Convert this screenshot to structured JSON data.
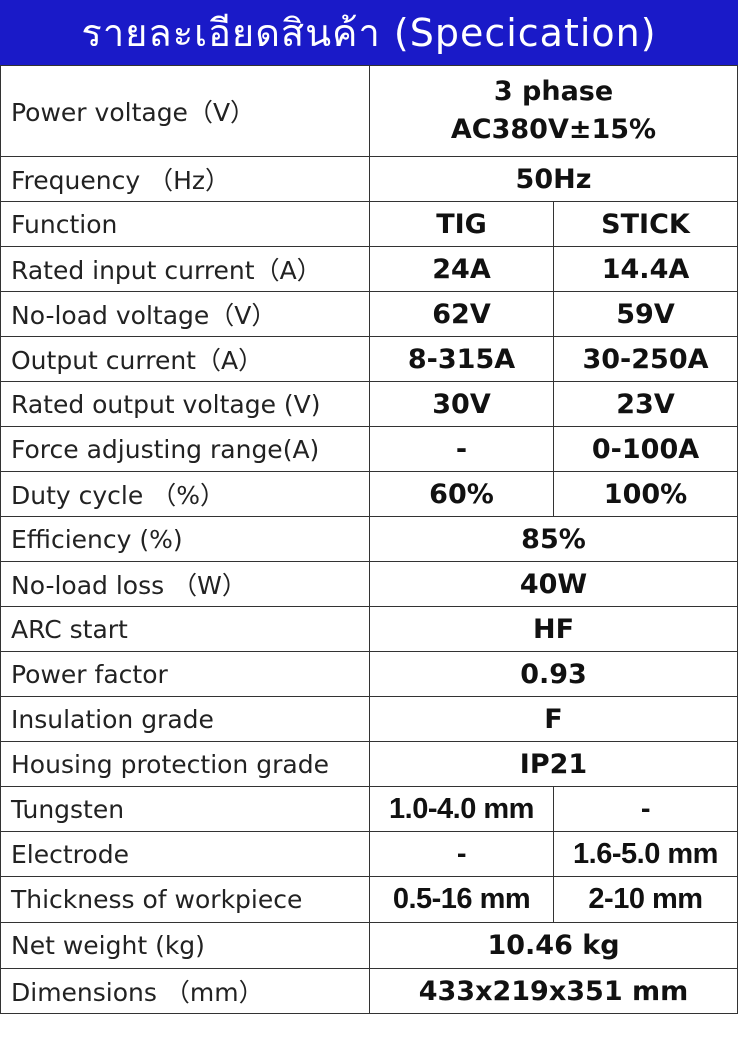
{
  "header": {
    "title": "รายละเอียดสินค้า (Specication)"
  },
  "rows": [
    {
      "label": "Power voltage（V）",
      "values": [
        "3 phase",
        "AC380V±15%"
      ],
      "span": true
    },
    {
      "label": "Frequency （Hz）",
      "values": [
        "50Hz"
      ],
      "span": true
    },
    {
      "label": "Function",
      "values": [
        "TIG",
        "STICK"
      ]
    },
    {
      "label": "Rated input current（A）",
      "values": [
        "24A",
        "14.4A"
      ]
    },
    {
      "label": "No-load voltage（V）",
      "values": [
        "62V",
        "59V"
      ]
    },
    {
      "label": "Output current（A）",
      "values": [
        "8-315A",
        "30-250A"
      ]
    },
    {
      "label": "Rated output voltage (V)",
      "values": [
        "30V",
        "23V"
      ]
    },
    {
      "label": "Force adjusting range(A)",
      "values": [
        "-",
        "0-100A"
      ]
    },
    {
      "label": "Duty cycle （%）",
      "values": [
        "60%",
        "100%"
      ]
    },
    {
      "label": "Efficiency (%)",
      "values": [
        "85%"
      ],
      "span": true
    },
    {
      "label": "No-load loss （W）",
      "values": [
        "40W"
      ],
      "span": true
    },
    {
      "label": "ARC start",
      "values": [
        "HF"
      ],
      "span": true
    },
    {
      "label": "Power factor",
      "values": [
        "0.93"
      ],
      "span": true
    },
    {
      "label": "Insulation grade",
      "values": [
        "F"
      ],
      "span": true
    },
    {
      "label": "Housing protection grade",
      "values": [
        "IP21"
      ],
      "span": true
    },
    {
      "label": "Tungsten",
      "values": [
        "1.0-4.0 mm",
        "-"
      ],
      "narrow": true
    },
    {
      "label": "Electrode",
      "values": [
        "-",
        "1.6-5.0 mm"
      ],
      "narrow": true
    },
    {
      "label": "Thickness of workpiece",
      "values": [
        "0.5-16 mm",
        "2-10 mm"
      ],
      "narrow": true
    },
    {
      "label": "Net weight (kg)",
      "values": [
        "10.46 kg"
      ],
      "span": true
    },
    {
      "label": "Dimensions （mm）",
      "values": [
        "433x219x351 mm"
      ],
      "span": true
    }
  ]
}
